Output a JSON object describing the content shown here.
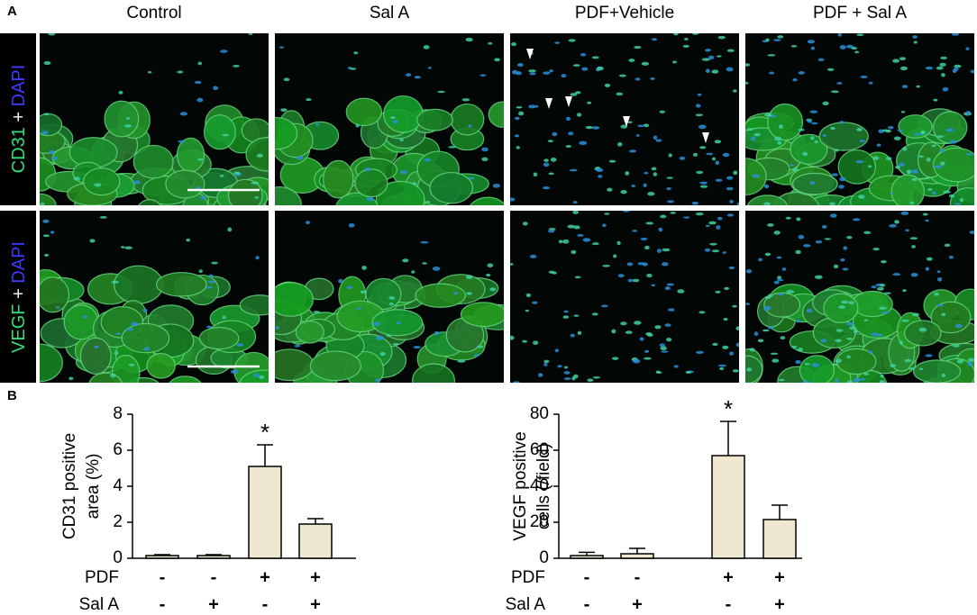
{
  "figure": {
    "panel_labels": [
      "A",
      "B"
    ],
    "columns": [
      "Control",
      "Sal A",
      "PDF+Vehicle",
      "PDF + Sal A"
    ],
    "rows": [
      [
        "CD31",
        "+",
        "DAPI"
      ],
      [
        "VEGF",
        "+",
        "DAPI"
      ]
    ]
  },
  "chart_data": [
    {
      "type": "bar",
      "ylabel": [
        "CD31 positive",
        "area (%)"
      ],
      "factors": [
        {
          "name": "PDF",
          "levels": [
            "-",
            "-",
            "+",
            "+"
          ]
        },
        {
          "name": "Sal A",
          "levels": [
            "-",
            "+",
            "-",
            "+"
          ]
        }
      ],
      "series": [
        {
          "color": "#efe7d0",
          "values": [
            0.15,
            0.15,
            5.1,
            1.9
          ],
          "errors": [
            0.05,
            0.05,
            1.2,
            0.3
          ]
        }
      ],
      "annotations": [
        {
          "index": 2,
          "text": "*"
        }
      ],
      "ylim": [
        0,
        8
      ],
      "yticks": [
        0,
        2,
        4,
        6,
        8
      ]
    },
    {
      "type": "bar",
      "ylabel": [
        "VEGF positive",
        "cells (/field)"
      ],
      "factors": [
        {
          "name": "PDF",
          "levels": [
            "-",
            "-",
            "+",
            "+"
          ]
        },
        {
          "name": "Sal A",
          "levels": [
            "-",
            "+",
            "-",
            "+"
          ]
        }
      ],
      "series": [
        {
          "color": "#efe7d0",
          "values": [
            1.5,
            2.5,
            57,
            21.5
          ],
          "errors": [
            1.8,
            3,
            19,
            8
          ]
        }
      ],
      "annotations": [
        {
          "index": 2,
          "text": "*"
        }
      ],
      "ylim": [
        0,
        80
      ],
      "yticks": [
        0,
        20,
        40,
        60,
        80
      ]
    }
  ]
}
